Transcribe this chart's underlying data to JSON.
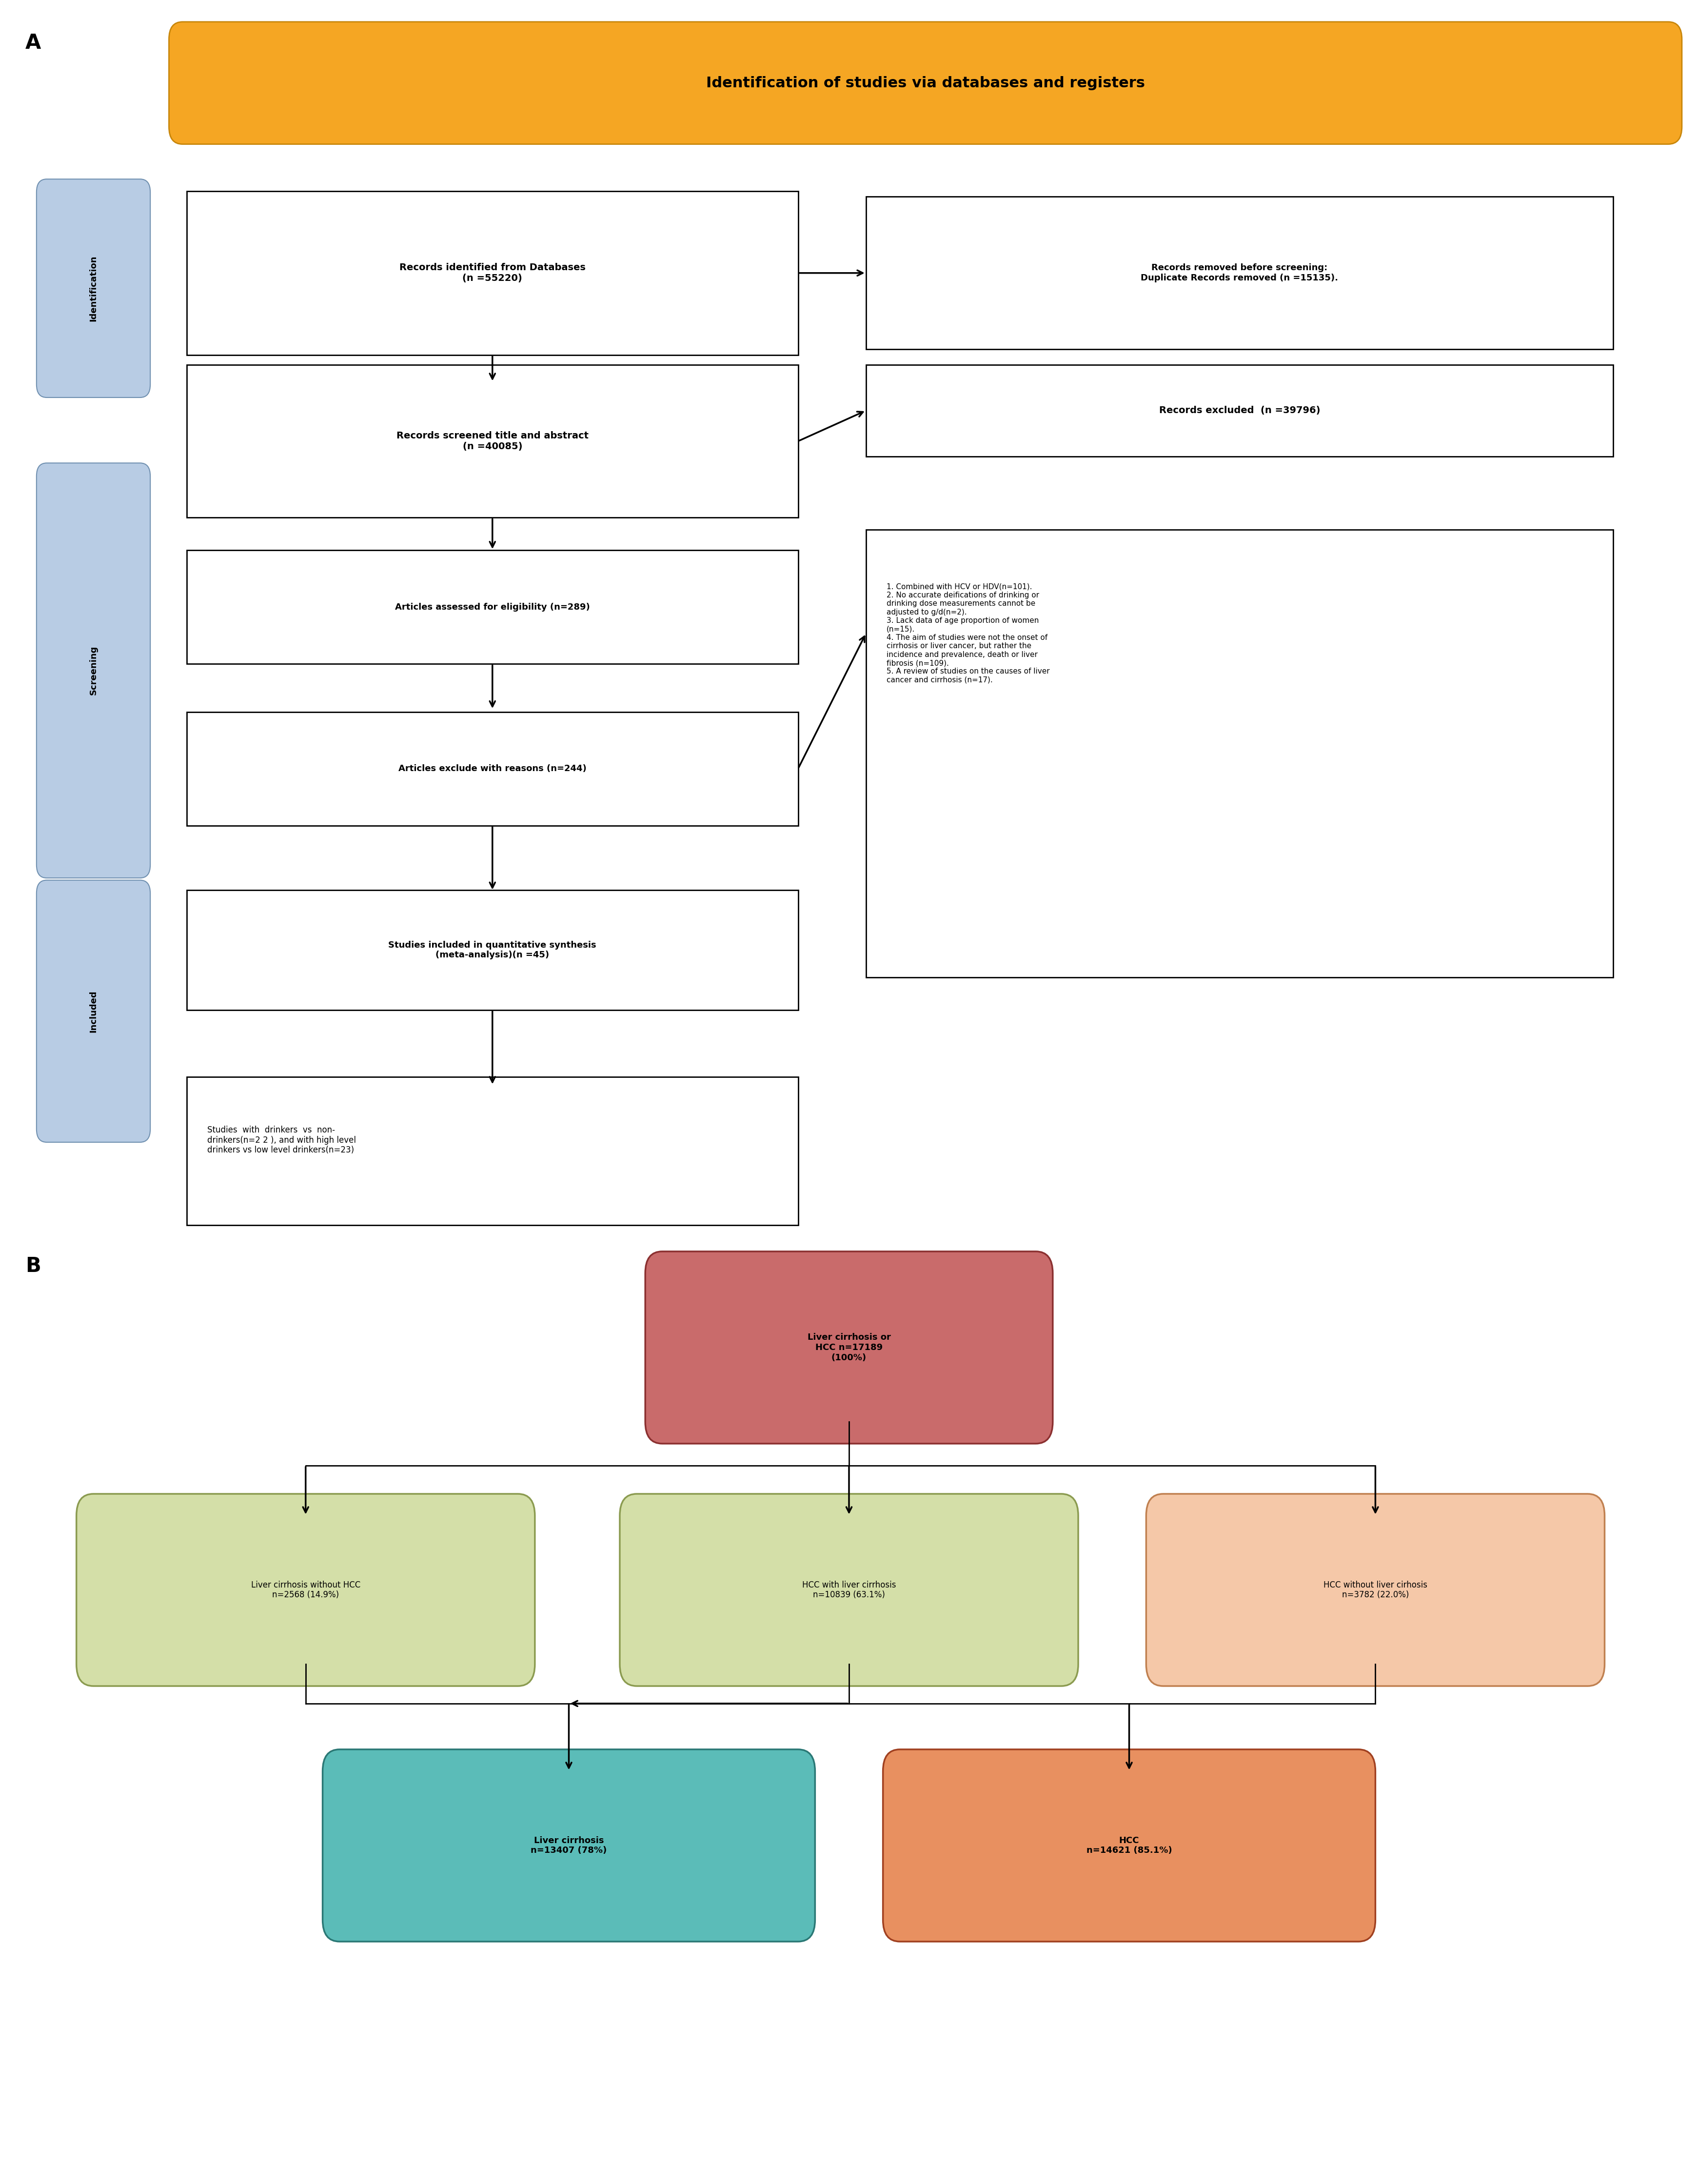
{
  "fig_width": 34.82,
  "fig_height": 44.78,
  "panel_A_label": "A",
  "panel_B_label": "B",
  "header_text": "Identification of studies via databases and registers",
  "header_bg": "#F5A623",
  "header_border": "#C8860A",
  "side_label_identification": "Identification",
  "side_label_screening": "Screening",
  "side_label_included": "Included",
  "side_bg": "#B8CCE4",
  "side_border": "#7090B0",
  "box1_text": "Records identified from Databases\n(n =55220)",
  "box2_text": "Records removed before screening:\nDuplicate Records removed (n =15135).",
  "box3_text": "Records screened title and abstract\n(n =40085)",
  "box4_text": "Records excluded  (n =39796)",
  "box5_text": "Articles assessed for eligibility (n=289)",
  "box6_text": "1. Combined with HCV or HDV(n=101).\n2. No accurate deifications of drinking or\ndrinking dose measurements cannot be\nadjusted to g/d(n=2).\n3. Lack data of age proportion of women\n(n=15).\n4. The aim of studies were not the onset of\ncirrhosis or liver cancer, but rather the\nincidence and prevalence, death or liver\nfibrosis (n=109).\n5. A review of studies on the causes of liver\ncancer and cirrhosis (n=17).",
  "box7_text": "Articles exclude with reasons (n=244)",
  "box8_text": "Studies included in quantitative synthesis\n(meta-analysis)(n =45)",
  "box9_text": "Studies  with  drinkers  vs  non-\ndrinkers(n=2 2 ), and with high level\ndrinkers vs low level drinkers(n=23)",
  "B_top_text": "Liver cirrhosis or\nHCC n=17189\n(100%)",
  "B_left_text": "Liver cirrhosis without HCC\nn=2568 (14.9%)",
  "B_mid_text": "HCC with liver cirrhosis\nn=10839 (63.1%)",
  "B_right_text": "HCC without liver cirhosis\nn=3782 (22.0%)",
  "B_bottom_left_text": "Liver cirrhosis\nn=13407 (78%)",
  "B_bottom_right_text": "HCC\nn=14621 (85.1%)",
  "B_top_color": "#C96B6B",
  "B_top_border": "#8B3030",
  "B_left_color": "#D4DFA8",
  "B_left_border": "#8B9B50",
  "B_mid_color": "#D4DFA8",
  "B_mid_border": "#8B9B50",
  "B_right_color": "#F5C8A8",
  "B_right_border": "#C08050",
  "B_bottom_left_color": "#5BBCB8",
  "B_bottom_left_border": "#2A7875",
  "B_bottom_right_color": "#E89060",
  "B_bottom_right_border": "#A04020"
}
